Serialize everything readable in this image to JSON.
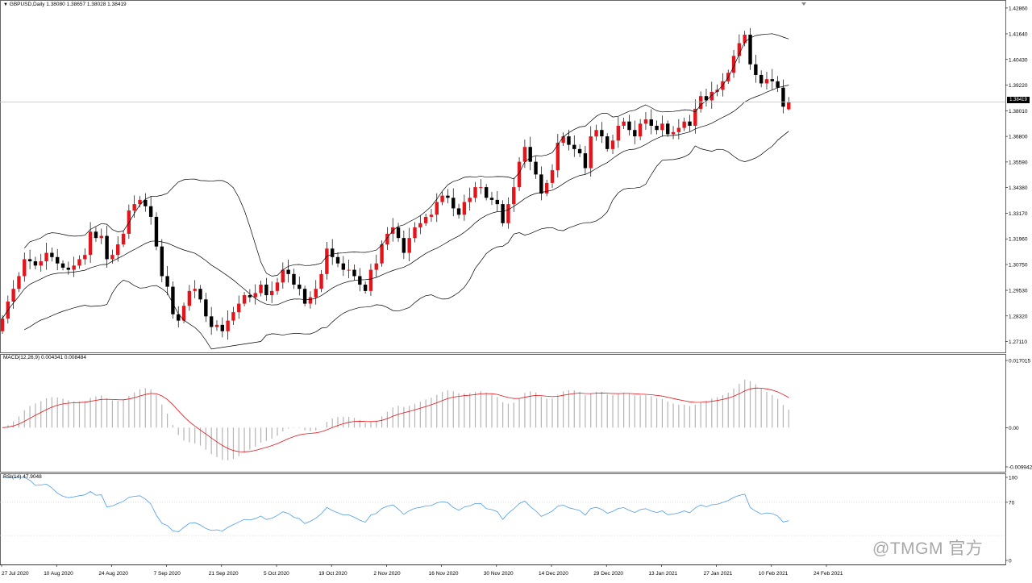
{
  "header": {
    "main_pane": "GBPUSD,Daily  1.38080 1.38657 1.38028 1.38419",
    "macd_pane": "MACD(12,26,9) 0.004341 0.008484",
    "rsi_pane": "RSI(14) 47.9048"
  },
  "current_price_label": "1.38419",
  "watermark": "@TMGM 官方",
  "colors": {
    "bull": "#e5141b",
    "bear": "#000000",
    "macd_hist": "#b4b4b4",
    "macd_signal": "#e5141b",
    "rsi_line": "#4e9ce8",
    "bands": "#000000",
    "grid": "#c8c8c8"
  },
  "chart_data": [
    {
      "type": "candlestick",
      "title": "GBPUSD,Daily",
      "ohlc_last": {
        "open": 1.3808,
        "high": 1.38657,
        "low": 1.38028,
        "close": 1.38419
      },
      "y_axis_labels": [
        "1.42860",
        "1.41640",
        "1.40430",
        "1.39220",
        "1.38010",
        "1.36800",
        "1.35590",
        "1.34380",
        "1.33170",
        "1.31960",
        "1.30750",
        "1.29530",
        "1.28320",
        "1.27110"
      ],
      "ylim": [
        1.266,
        1.432
      ],
      "x_axis_labels": [
        "27 Jul 2020",
        "10 Aug 2020",
        "24 Aug 2020",
        "7 Sep 2020",
        "21 Sep 2020",
        "5 Oct 2020",
        "19 Oct 2020",
        "2 Nov 2020",
        "16 Nov 2020",
        "30 Nov 2020",
        "14 Dec 2020",
        "29 Dec 2020",
        "13 Jan 2021",
        "27 Jan 2021",
        "10 Feb 2021",
        "24 Feb 2021"
      ],
      "indicator": "Bollinger Bands",
      "closes": [
        1.282,
        1.29,
        1.296,
        1.302,
        1.31,
        1.309,
        1.307,
        1.309,
        1.313,
        1.311,
        1.308,
        1.306,
        1.305,
        1.307,
        1.31,
        1.312,
        1.323,
        1.32,
        1.321,
        1.31,
        1.312,
        1.317,
        1.322,
        1.333,
        1.336,
        1.338,
        1.335,
        1.33,
        1.316,
        1.302,
        1.297,
        1.284,
        1.281,
        1.288,
        1.295,
        1.296,
        1.291,
        1.283,
        1.278,
        1.279,
        1.276,
        1.281,
        1.285,
        1.289,
        1.293,
        1.292,
        1.294,
        1.298,
        1.293,
        1.295,
        1.299,
        1.305,
        1.303,
        1.298,
        1.296,
        1.289,
        1.292,
        1.296,
        1.303,
        1.315,
        1.311,
        1.308,
        1.305,
        1.305,
        1.302,
        1.298,
        1.295,
        1.305,
        1.308,
        1.317,
        1.322,
        1.325,
        1.32,
        1.313,
        1.32,
        1.325,
        1.327,
        1.33,
        1.331,
        1.337,
        1.34,
        1.339,
        1.334,
        1.331,
        1.337,
        1.339,
        1.344,
        1.344,
        1.339,
        1.338,
        1.336,
        1.327,
        1.336,
        1.344,
        1.356,
        1.363,
        1.356,
        1.35,
        1.341,
        1.346,
        1.352,
        1.365,
        1.368,
        1.364,
        1.362,
        1.36,
        1.353,
        1.368,
        1.371,
        1.368,
        1.362,
        1.366,
        1.373,
        1.375,
        1.371,
        1.368,
        1.374,
        1.376,
        1.373,
        1.371,
        1.374,
        1.369,
        1.37,
        1.372,
        1.375,
        1.373,
        1.381,
        1.387,
        1.385,
        1.389,
        1.39,
        1.394,
        1.398,
        1.406,
        1.412,
        1.416,
        1.402,
        1.397,
        1.393,
        1.395,
        1.394,
        1.391,
        1.382,
        1.384
      ]
    },
    {
      "type": "bar",
      "title": "MACD(12,26,9)",
      "values_last": {
        "main": 0.004341,
        "signal": 0.008484
      },
      "y_axis_labels": [
        "0.017015",
        "0.00",
        "-0.009942"
      ],
      "ylim": [
        -0.009942,
        0.017015
      ]
    },
    {
      "type": "line",
      "title": "RSI(14)",
      "value_last": 47.9048,
      "y_axis_labels": [
        "100",
        "70",
        "0"
      ],
      "ylim": [
        0,
        100
      ],
      "levels": [
        70,
        30
      ]
    }
  ]
}
